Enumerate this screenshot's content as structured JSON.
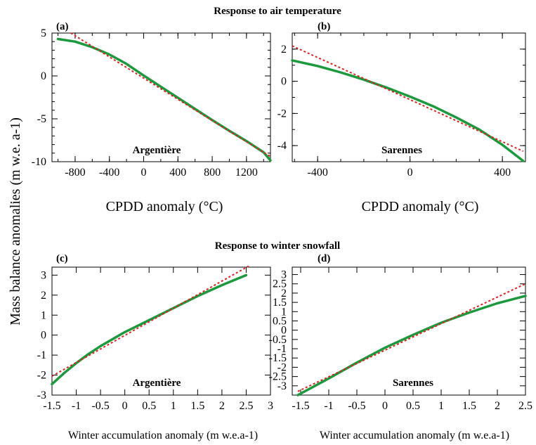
{
  "figure": {
    "top_title": "Response to air temperature",
    "bottom_title": "Response to winter snowfall",
    "ylabel": "Mass balance anomalies (m w.e. a-1)"
  },
  "colors": {
    "model_line": "#1a9a3c",
    "linear_fit": "#e0201c",
    "axis": "#000000"
  },
  "chart_data": [
    {
      "panel": "(a)",
      "type": "line",
      "site": "Argentière",
      "xlabel": "CPDD anomaly (°C)",
      "xlim": [
        -1070,
        1480
      ],
      "ylim": [
        -10,
        5
      ],
      "xticks_labeled": [
        -800,
        -400,
        0,
        400,
        800,
        1200
      ],
      "xminor": 200,
      "yticks_labeled": [
        -10,
        -5,
        0,
        5
      ],
      "yminor": 1,
      "series": [
        {
          "role": "model",
          "x": [
            -1000,
            -800,
            -600,
            -400,
            -200,
            0,
            200,
            400,
            600,
            800,
            1000,
            1200,
            1400,
            1480
          ],
          "y": [
            4.3,
            4.0,
            3.35,
            2.5,
            1.4,
            0.05,
            -1.25,
            -2.55,
            -3.85,
            -5.15,
            -6.4,
            -7.6,
            -8.9,
            -9.85
          ]
        },
        {
          "role": "linear",
          "x": [
            -850,
            1480
          ],
          "y": [
            5.0,
            -9.4
          ]
        }
      ]
    },
    {
      "panel": "(b)",
      "type": "line",
      "site": "Sarennes",
      "xlabel": "CPDD anomaly (°C)",
      "xlim": [
        -510,
        500
      ],
      "ylim": [
        -5,
        3
      ],
      "xticks_labeled": [
        -400,
        0,
        400
      ],
      "xminor": 100,
      "yticks_labeled": [
        -4,
        -2,
        0,
        2
      ],
      "yminor": 1,
      "series": [
        {
          "role": "model",
          "x": [
            -510,
            -400,
            -300,
            -200,
            -100,
            0,
            100,
            200,
            300,
            400,
            490
          ],
          "y": [
            1.3,
            0.95,
            0.55,
            0.1,
            -0.4,
            -0.95,
            -1.55,
            -2.25,
            -3.0,
            -3.95,
            -4.95
          ]
        },
        {
          "role": "linear",
          "x": [
            -510,
            490
          ],
          "y": [
            2.2,
            -4.35
          ]
        }
      ]
    },
    {
      "panel": "(c)",
      "type": "line",
      "site": "Argentière",
      "xlabel": "Winter accumulation anomaly (m w.e.a-1)",
      "xlim": [
        -1.5,
        3
      ],
      "ylim": [
        -3,
        3.4
      ],
      "xticks_labeled": [
        -1.5,
        -1,
        -0.5,
        0,
        0.5,
        1,
        1.5,
        2,
        2.5,
        3
      ],
      "yticks_labeled": [
        -3,
        -2,
        -1,
        0,
        1,
        2,
        3
      ],
      "series": [
        {
          "role": "model",
          "x": [
            -1.5,
            -1.25,
            -1.0,
            -0.75,
            -0.5,
            -0.25,
            0,
            0.5,
            1.0,
            1.5,
            2.0,
            2.5
          ],
          "y": [
            -2.45,
            -1.9,
            -1.4,
            -0.95,
            -0.55,
            -0.2,
            0.15,
            0.75,
            1.35,
            1.95,
            2.5,
            3.0
          ]
        },
        {
          "role": "linear",
          "x": [
            -1.5,
            2.55
          ],
          "y": [
            -2.05,
            3.45
          ]
        }
      ]
    },
    {
      "panel": "(d)",
      "type": "line",
      "site": "Sarennes",
      "xlabel": "Winter accumulation anomaly (m w.e.a-1)",
      "xlim": [
        -1.65,
        2.5
      ],
      "ylim": [
        -3.5,
        3.4
      ],
      "xticks_labeled": [
        -1.5,
        -1,
        -0.5,
        0,
        0.5,
        1,
        1.5,
        2,
        2.5
      ],
      "yticks_labeled": [
        -3,
        -2.5,
        -2,
        -1.5,
        -1,
        -0.5,
        0,
        0.5,
        1,
        1.5,
        2,
        2.5,
        3
      ],
      "series": [
        {
          "role": "model",
          "x": [
            -1.55,
            -1.0,
            -0.5,
            0,
            0.5,
            1.0,
            1.5,
            2.0,
            2.5
          ],
          "y": [
            -3.5,
            -2.6,
            -1.75,
            -0.95,
            -0.25,
            0.4,
            0.95,
            1.45,
            1.85
          ]
        },
        {
          "role": "linear",
          "x": [
            -1.55,
            2.5
          ],
          "y": [
            -3.3,
            2.5
          ]
        }
      ]
    }
  ]
}
